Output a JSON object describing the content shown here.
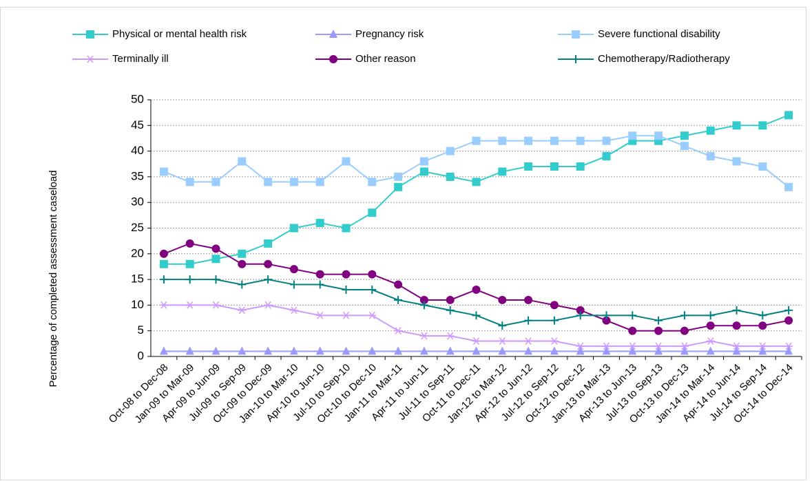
{
  "chart_data": {
    "type": "line",
    "y_label": "Percentage of completed assessment caseload",
    "categories": [
      "Oct-08 to Dec-08",
      "Jan-09 to Mar-09",
      "Apr-09 to Jun-09",
      "Jul-09 to Sep-09",
      "Oct-09 to Dec-09",
      "Jan-10 to Mar-10",
      "Apr-10 to Jun-10",
      "Jul-10 to Sep-10",
      "Oct-10 to Dec-10",
      "Jan-11 to Mar-11",
      "Apr-11 to Jun-11",
      "Jul-11 to Sep-11",
      "Oct-11 to Dec-11",
      "Jan-12 to Mar-12",
      "Apr-12 to Jun-12",
      "Jul-12 to Sep-12",
      "Oct-12 to Dec-12",
      "Jan-13 to Mar-13",
      "Apr-13 to Jun-13",
      "Jul-13 to Sep-13",
      "Oct-13 to Dec-13",
      "Jan-14 to Mar-14",
      "Apr-14 to Jun-14",
      "Jul-14 to Sep-14",
      "Oct-14 to Dec-14"
    ],
    "series": [
      {
        "name": "Physical or mental health risk",
        "color": "#33cccc",
        "marker": "square",
        "values": [
          18,
          18,
          19,
          20,
          22,
          25,
          26,
          25,
          28,
          33,
          36,
          35,
          34,
          36,
          37,
          37,
          37,
          39,
          42,
          42,
          43,
          44,
          45,
          45,
          47
        ]
      },
      {
        "name": "Pregnancy risk",
        "color": "#9999ff",
        "marker": "triangle",
        "values": [
          1,
          1,
          1,
          1,
          1,
          1,
          1,
          1,
          1,
          1,
          1,
          1,
          1,
          1,
          1,
          1,
          1,
          1,
          1,
          1,
          1,
          1,
          1,
          1,
          1
        ]
      },
      {
        "name": "Severe functional disability",
        "color": "#99ccff",
        "marker": "square",
        "values": [
          36,
          34,
          34,
          38,
          34,
          34,
          34,
          38,
          34,
          35,
          38,
          40,
          42,
          42,
          42,
          42,
          42,
          42,
          43,
          43,
          41,
          39,
          38,
          37,
          33
        ]
      },
      {
        "name": "Terminally ill",
        "color": "#cc99ff",
        "marker": "asterisk",
        "values": [
          10,
          10,
          10,
          9,
          10,
          9,
          8,
          8,
          8,
          5,
          4,
          4,
          3,
          3,
          3,
          3,
          2,
          2,
          2,
          2,
          2,
          3,
          2,
          2,
          2
        ]
      },
      {
        "name": "Other reason",
        "color": "#800080",
        "marker": "circle",
        "values": [
          20,
          22,
          21,
          18,
          18,
          17,
          16,
          16,
          16,
          14,
          11,
          11,
          13,
          11,
          11,
          10,
          9,
          7,
          5,
          5,
          5,
          6,
          6,
          6,
          7
        ]
      },
      {
        "name": "Chemotherapy/Radiotherapy",
        "color": "#008080",
        "marker": "plus",
        "values": [
          15,
          15,
          15,
          14,
          15,
          14,
          14,
          13,
          13,
          11,
          10,
          9,
          8,
          6,
          7,
          7,
          8,
          8,
          8,
          7,
          8,
          8,
          9,
          8,
          9
        ]
      }
    ],
    "ylim": [
      0,
      50
    ],
    "yticks": [
      0,
      5,
      10,
      15,
      20,
      25,
      30,
      35,
      40,
      45,
      50
    ],
    "grid": true
  }
}
